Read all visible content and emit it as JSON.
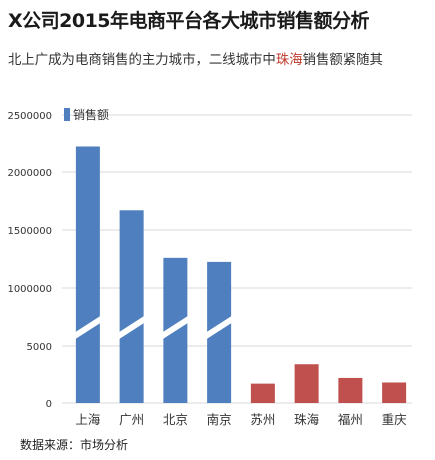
{
  "header": {
    "title": "X公司2015年电商平台各大城市销售额分析",
    "subtitle_before": "北上广成为电商销售的主力城市，二线城市中",
    "subtitle_highlight": "珠海",
    "subtitle_after": "销售额紧随其"
  },
  "footer": {
    "source": "数据来源：市场分析"
  },
  "chart_data": {
    "type": "bar",
    "legend": [
      "销售额"
    ],
    "legend_position": "top-left",
    "grid": true,
    "categories": [
      "上海",
      "广州",
      "北京",
      "南京",
      "苏州",
      "珠海",
      "福州",
      "重庆"
    ],
    "values": [
      2220000,
      1670000,
      1260000,
      1225000,
      1700,
      3400,
      2200,
      1800
    ],
    "y_tick_labels": [
      "0",
      "5000",
      "1000000",
      "1500000",
      "2000000",
      "2500000"
    ],
    "axis_break": "between 5000 and 1000000",
    "colors": {
      "primary": "#4f7fbe",
      "secondary": "#c0504d",
      "grid": "#d9d9d9"
    },
    "series_color_by_category": [
      "primary",
      "primary",
      "primary",
      "primary",
      "secondary",
      "secondary",
      "secondary",
      "secondary"
    ]
  }
}
